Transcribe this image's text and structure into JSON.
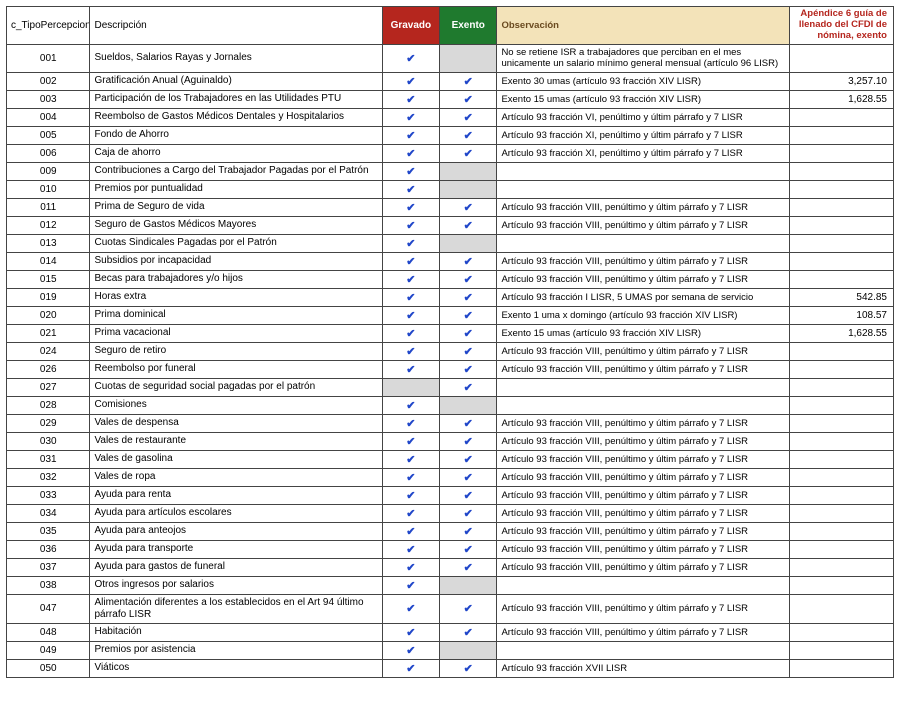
{
  "headers": {
    "code": "c_TipoPercepcion",
    "desc": "Descripción",
    "gravado": "Gravado",
    "exento": "Exento",
    "observacion": "Observación",
    "apendice": "Apéndice 6 guía de llenado del CFDI de nómina, exento"
  },
  "colors": {
    "gravado_bg": "#b5261e",
    "exento_bg": "#1f7a2e",
    "obs_bg": "#f3e3b9",
    "obs_text": "#6a4a1f",
    "amt_text": "#b5261e",
    "check_color": "#2046c9",
    "shaded_bg": "#d9d9d9",
    "border": "#444444"
  },
  "checkmark": "✔",
  "rows": [
    {
      "code": "001",
      "desc": "Sueldos, Salarios  Rayas y Jornales",
      "grav": true,
      "exen": false,
      "exen_shaded": true,
      "obs": "No se retiene ISR a trabajadores que perciban en el mes unicamente un salario mínimo general mensual (artículo 96 LISR)",
      "amt": ""
    },
    {
      "code": "002",
      "desc": "Gratificación Anual (Aguinaldo)",
      "grav": true,
      "exen": true,
      "obs": "Exento 30 umas (artículo 93 fracción XIV LISR)",
      "amt": "3,257.10"
    },
    {
      "code": "003",
      "desc": "Participación de los Trabajadores en las Utilidades PTU",
      "grav": true,
      "exen": true,
      "obs": "Exento 15 umas (artículo 93 fracción XIV LISR)",
      "amt": "1,628.55"
    },
    {
      "code": "004",
      "desc": "Reembolso de Gastos Médicos Dentales y Hospitalarios",
      "grav": true,
      "exen": true,
      "obs": "Artículo 93 fracción VI, penúltimo y últim párrafo y 7 LISR",
      "amt": ""
    },
    {
      "code": "005",
      "desc": "Fondo de Ahorro",
      "grav": true,
      "exen": true,
      "obs": "Artículo 93 fracción XI, penúltimo y últim párrafo y 7 LISR",
      "amt": ""
    },
    {
      "code": "006",
      "desc": "Caja de ahorro",
      "grav": true,
      "exen": true,
      "obs": "Artículo 93 fracción XI, penúltimo y últim párrafo y 7 LISR",
      "amt": ""
    },
    {
      "code": "009",
      "desc": "Contribuciones a Cargo del Trabajador Pagadas por el Patrón",
      "grav": true,
      "exen": false,
      "exen_shaded": true,
      "obs": "",
      "amt": ""
    },
    {
      "code": "010",
      "desc": "Premios por puntualidad",
      "grav": true,
      "exen": false,
      "exen_shaded": true,
      "obs": "",
      "amt": ""
    },
    {
      "code": "011",
      "desc": "Prima de Seguro de vida",
      "grav": true,
      "exen": true,
      "obs": "Artículo 93 fracción VIII, penúltimo y últim párrafo y 7 LISR",
      "amt": ""
    },
    {
      "code": "012",
      "desc": "Seguro de Gastos Médicos Mayores",
      "grav": true,
      "exen": true,
      "obs": "Artículo 93 fracción VIII, penúltimo y últim párrafo y 7 LISR",
      "amt": ""
    },
    {
      "code": "013",
      "desc": "Cuotas Sindicales Pagadas por el Patrón",
      "grav": true,
      "exen": false,
      "exen_shaded": true,
      "obs": "",
      "amt": ""
    },
    {
      "code": "014",
      "desc": "Subsidios por incapacidad",
      "grav": true,
      "exen": true,
      "obs": "Artículo 93 fracción VIII, penúltimo y últim párrafo y 7 LISR",
      "amt": ""
    },
    {
      "code": "015",
      "desc": "Becas para trabajadores y/o hijos",
      "grav": true,
      "exen": true,
      "obs": "Artículo 93 fracción VIII, penúltimo y últim párrafo y 7 LISR",
      "amt": ""
    },
    {
      "code": "019",
      "desc": "Horas extra",
      "grav": true,
      "exen": true,
      "obs": "Artículo 93 fracción I LISR, 5 UMAS por semana de servicio",
      "amt": "542.85"
    },
    {
      "code": "020",
      "desc": "Prima dominical",
      "grav": true,
      "exen": true,
      "obs": "Exento 1 uma x domingo (artículo 93 fracción XIV LISR)",
      "amt": "108.57"
    },
    {
      "code": "021",
      "desc": "Prima vacacional",
      "grav": true,
      "exen": true,
      "obs": "Exento 15 umas (artículo 93 fracción XIV LISR)",
      "amt": "1,628.55"
    },
    {
      "code": "024",
      "desc": "Seguro de retiro",
      "grav": true,
      "exen": true,
      "obs": "Artículo 93 fracción VIII, penúltimo y últim párrafo y 7 LISR",
      "amt": ""
    },
    {
      "code": "026",
      "desc": "Reembolso por funeral",
      "grav": true,
      "exen": true,
      "obs": "Artículo 93 fracción VIII, penúltimo y últim párrafo y 7 LISR",
      "amt": ""
    },
    {
      "code": "027",
      "desc": "Cuotas de seguridad social pagadas por el patrón",
      "grav": false,
      "grav_shaded": true,
      "exen": true,
      "obs": "",
      "amt": ""
    },
    {
      "code": "028",
      "desc": "Comisiones",
      "grav": true,
      "exen": false,
      "exen_shaded": true,
      "obs": "",
      "amt": ""
    },
    {
      "code": "029",
      "desc": "Vales de despensa",
      "grav": true,
      "exen": true,
      "obs": "Artículo 93 fracción VIII, penúltimo y últim párrafo y 7 LISR",
      "amt": ""
    },
    {
      "code": "030",
      "desc": "Vales de restaurante",
      "grav": true,
      "exen": true,
      "obs": "Artículo 93 fracción VIII, penúltimo y últim párrafo y 7 LISR",
      "amt": ""
    },
    {
      "code": "031",
      "desc": "Vales de gasolina",
      "grav": true,
      "exen": true,
      "obs": "Artículo 93 fracción VIII, penúltimo y últim párrafo y 7 LISR",
      "amt": ""
    },
    {
      "code": "032",
      "desc": "Vales de ropa",
      "grav": true,
      "exen": true,
      "obs": "Artículo 93 fracción VIII, penúltimo y últim párrafo y 7 LISR",
      "amt": ""
    },
    {
      "code": "033",
      "desc": "Ayuda para renta",
      "grav": true,
      "exen": true,
      "obs": "Artículo 93 fracción VIII, penúltimo y últim párrafo y 7 LISR",
      "amt": ""
    },
    {
      "code": "034",
      "desc": "Ayuda para artículos escolares",
      "grav": true,
      "exen": true,
      "obs": "Artículo 93 fracción VIII, penúltimo y últim párrafo y 7 LISR",
      "amt": ""
    },
    {
      "code": "035",
      "desc": "Ayuda para anteojos",
      "grav": true,
      "exen": true,
      "obs": "Artículo 93 fracción VIII, penúltimo y últim párrafo y 7 LISR",
      "amt": ""
    },
    {
      "code": "036",
      "desc": "Ayuda para transporte",
      "grav": true,
      "exen": true,
      "obs": "Artículo 93 fracción VIII, penúltimo y últim párrafo y 7 LISR",
      "amt": ""
    },
    {
      "code": "037",
      "desc": "Ayuda para gastos de funeral",
      "grav": true,
      "exen": true,
      "obs": "Artículo 93 fracción VIII, penúltimo y últim párrafo y 7 LISR",
      "amt": ""
    },
    {
      "code": "038",
      "desc": "Otros ingresos por salarios",
      "grav": true,
      "exen": false,
      "exen_shaded": true,
      "obs": "",
      "amt": ""
    },
    {
      "code": "047",
      "desc": "Alimentación diferentes a los establecidos en el Art 94 último párrafo LISR",
      "grav": true,
      "exen": true,
      "obs": "Artículo 93 fracción VIII, penúltimo y últim párrafo y 7 LISR",
      "amt": ""
    },
    {
      "code": "048",
      "desc": "Habitación",
      "grav": true,
      "exen": true,
      "obs": "Artículo 93 fracción VIII, penúltimo y últim párrafo y 7 LISR",
      "amt": ""
    },
    {
      "code": "049",
      "desc": "Premios por asistencia",
      "grav": true,
      "exen": false,
      "exen_shaded": true,
      "obs": "",
      "amt": ""
    },
    {
      "code": "050",
      "desc": "Viáticos",
      "grav": true,
      "exen": true,
      "obs": "Artículo 93 fracción XVII LISR",
      "amt": ""
    }
  ]
}
